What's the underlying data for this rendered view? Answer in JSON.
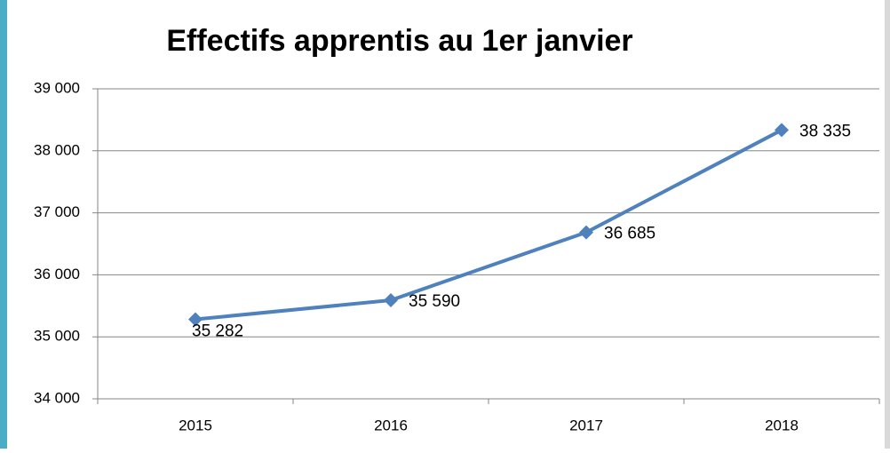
{
  "chart_data": {
    "type": "line",
    "title": "Effectifs apprentis au 1er janvier",
    "categories": [
      "2015",
      "2016",
      "2017",
      "2018"
    ],
    "values": [
      35282,
      35590,
      36685,
      38335
    ],
    "value_labels": [
      "35 282",
      "35 590",
      "36 685",
      "38 335"
    ],
    "color": "#4f81bd",
    "ylim": [
      34000,
      39000
    ],
    "yticks": [
      {
        "value": 34000,
        "label": "34 000"
      },
      {
        "value": 35000,
        "label": "35 000"
      },
      {
        "value": 36000,
        "label": "36 000"
      },
      {
        "value": 37000,
        "label": "37 000"
      },
      {
        "value": 38000,
        "label": "38 000"
      },
      {
        "value": 39000,
        "label": "39 000"
      }
    ],
    "grid": true
  }
}
